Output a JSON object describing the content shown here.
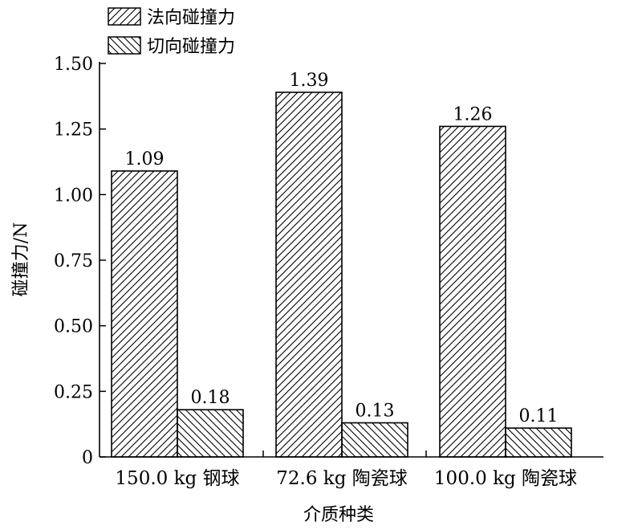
{
  "chart_data": {
    "type": "bar",
    "categories": [
      "150.0 kg 钢球",
      "72.6 kg 陶瓷球",
      "100.0 kg 陶瓷球"
    ],
    "series": [
      {
        "name": "法向碰撞力",
        "values": [
          1.09,
          1.39,
          1.26
        ],
        "value_labels": [
          "1.09",
          "1.39",
          "1.26"
        ],
        "pattern": "hatch-forward"
      },
      {
        "name": "切向碰撞力",
        "values": [
          0.18,
          0.13,
          0.11
        ],
        "value_labels": [
          "0.18",
          "0.13",
          "0.11"
        ],
        "pattern": "hatch-backward"
      }
    ],
    "xlabel": "介质种类",
    "ylabel": "碰撞力/N",
    "ylim": [
      0,
      1.5
    ],
    "yticks": [
      0,
      0.25,
      0.5,
      0.75,
      1.0,
      1.25,
      1.5
    ],
    "ytick_labels": [
      "0",
      "0.25",
      "0.50",
      "0.75",
      "1.00",
      "1.25",
      "1.50"
    ],
    "grid": false,
    "legend_position": "top-left"
  }
}
